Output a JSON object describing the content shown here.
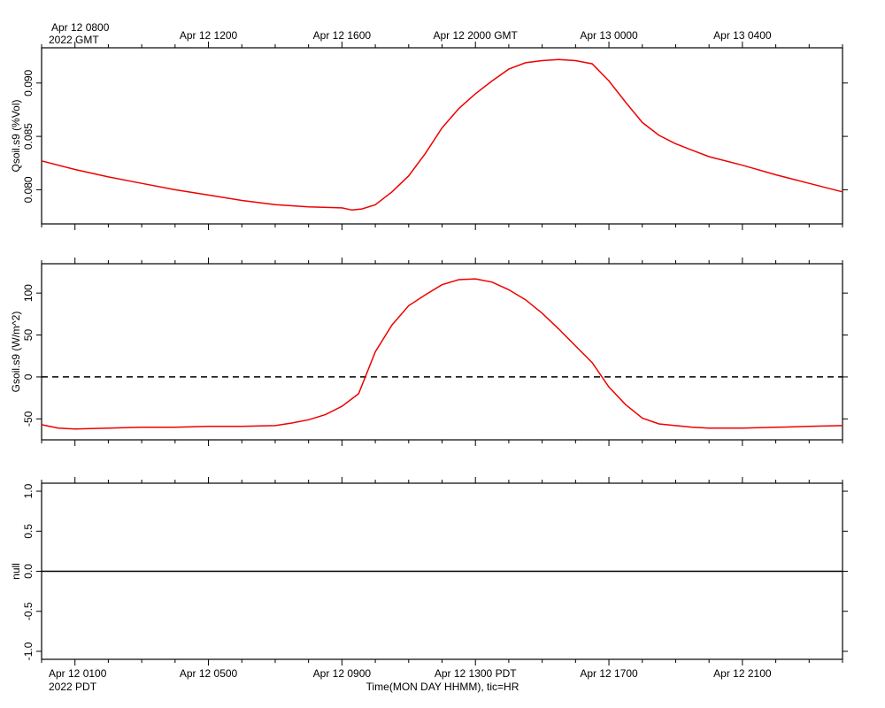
{
  "colors": {
    "series": "#ee0000",
    "axis": "#000000",
    "background": "#ffffff"
  },
  "top_labels": {
    "start_line1": "Apr 12 0800",
    "start_line2": "2022 GMT",
    "ticks": [
      "Apr 12 1200",
      "Apr 12 1600",
      "Apr 12 2000 GMT",
      "Apr 13 0000",
      "Apr 13 0400"
    ]
  },
  "bottom_labels": {
    "start_line1": "Apr 12 0100",
    "start_line2": "2022 PDT",
    "ticks": [
      "Apr 12 0500",
      "Apr 12 0900",
      "Apr 12 1300 PDT",
      "Apr 12 1700",
      "Apr 12 2100"
    ],
    "xlabel": "Time(MON DAY HHMM), tic=HR"
  },
  "chart_data": [
    {
      "type": "line",
      "id": "qsoil",
      "ylabel": "Qsoil.s9 (%Vol)",
      "x_unit": "hours after Apr 12 0000 PDT",
      "xlim": [
        0,
        24
      ],
      "ylim": [
        0.0768,
        0.0933
      ],
      "y_ticks": [
        0.08,
        0.085,
        0.09
      ],
      "y_tick_labels": [
        "0.080",
        "0.085",
        "0.090"
      ],
      "grid": false,
      "series": [
        {
          "x": [
            0,
            1,
            2,
            3,
            4,
            5,
            6,
            7,
            8,
            9,
            9.3,
            9.6,
            10,
            10.5,
            11,
            11.5,
            12,
            12.5,
            13,
            13.5,
            14,
            14.5,
            15,
            15.5,
            16,
            16.5,
            17,
            17.5,
            18,
            18.5,
            19,
            19.5,
            20,
            21,
            22,
            23,
            24
          ],
          "y": [
            0.0827,
            0.0819,
            0.0812,
            0.0806,
            0.08,
            0.0795,
            0.079,
            0.0786,
            0.0784,
            0.0783,
            0.0781,
            0.0782,
            0.0786,
            0.0798,
            0.0813,
            0.0834,
            0.0858,
            0.0876,
            0.089,
            0.0902,
            0.0913,
            0.0919,
            0.0921,
            0.0922,
            0.0921,
            0.0918,
            0.0902,
            0.0882,
            0.0863,
            0.0851,
            0.0843,
            0.0837,
            0.0831,
            0.0823,
            0.0814,
            0.0806,
            0.0798
          ]
        }
      ]
    },
    {
      "type": "line",
      "id": "gsoil",
      "ylabel": "Gsoil.s9 (W/m^2)",
      "x_unit": "hours after Apr 12 0000 PDT",
      "xlim": [
        0,
        24
      ],
      "ylim": [
        -75,
        135
      ],
      "y_ticks": [
        -50,
        0,
        50,
        100
      ],
      "y_tick_labels": [
        "-50",
        "0",
        "50",
        "100"
      ],
      "reference_line": {
        "y": 0,
        "style": "dashed"
      },
      "grid": false,
      "series": [
        {
          "x": [
            0,
            0.5,
            1,
            2,
            3,
            4,
            5,
            6,
            7,
            7.5,
            8,
            8.5,
            9,
            9.5,
            10,
            10.5,
            11,
            11.5,
            12,
            12.5,
            13,
            13.5,
            14,
            14.5,
            15,
            15.5,
            16,
            16.5,
            17,
            17.5,
            18,
            18.5,
            19,
            19.5,
            20,
            21,
            22,
            23,
            24
          ],
          "y": [
            -57,
            -61,
            -62,
            -61,
            -60,
            -60,
            -59,
            -59,
            -58,
            -55,
            -51,
            -45,
            -35,
            -20,
            30,
            62,
            85,
            98,
            110,
            116,
            117,
            113,
            104,
            92,
            76,
            57,
            37,
            17,
            -12,
            -33,
            -49,
            -56,
            -58,
            -60,
            -61,
            -61,
            -60,
            -59,
            -58
          ]
        }
      ]
    },
    {
      "type": "line",
      "id": "null",
      "ylabel": "null",
      "x_unit": "hours after Apr 12 0000 PDT",
      "xlim": [
        0,
        24
      ],
      "ylim": [
        -1.1,
        1.1
      ],
      "y_ticks": [
        -1.0,
        -0.5,
        0.0,
        0.5,
        1.0
      ],
      "y_tick_labels": [
        "-1.0",
        "-0.5",
        "0.0",
        "0.5",
        "1.0"
      ],
      "grid": false,
      "series": [
        {
          "x": [
            0,
            24
          ],
          "y": [
            0,
            0
          ]
        }
      ]
    }
  ]
}
